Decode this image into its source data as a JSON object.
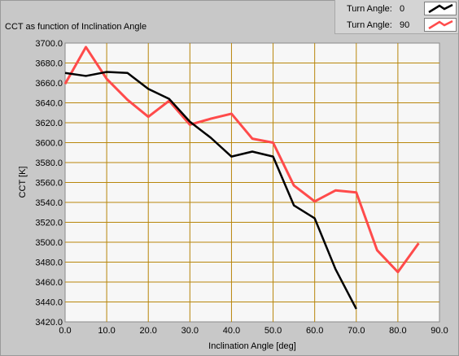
{
  "chart_data": {
    "type": "line",
    "title": "CCT as function of Inclination Angle",
    "xlabel": "Inclination Angle [deg]",
    "ylabel": "CCT [K]",
    "xlim": [
      0,
      90
    ],
    "ylim": [
      3420,
      3700
    ],
    "xticks": [
      "0.0",
      "10.0",
      "20.0",
      "30.0",
      "40.0",
      "50.0",
      "60.0",
      "70.0",
      "80.0",
      "90.0"
    ],
    "yticks": [
      "3420.0",
      "3440.0",
      "3460.0",
      "3480.0",
      "3500.0",
      "3520.0",
      "3540.0",
      "3560.0",
      "3580.0",
      "3600.0",
      "3620.0",
      "3640.0",
      "3660.0",
      "3680.0",
      "3700.0"
    ],
    "grid": true,
    "legend_position": "top-right",
    "legend_label": "Turn Angle:",
    "series": [
      {
        "name": "0",
        "color": "#000000",
        "x": [
          0,
          5,
          10,
          15,
          20,
          25,
          30,
          35,
          40,
          45,
          50,
          55,
          60,
          65,
          70
        ],
        "y": [
          3670,
          3667,
          3671,
          3670,
          3654,
          3644,
          3621,
          3605,
          3586,
          3591,
          3586,
          3537,
          3524,
          3473,
          3433
        ]
      },
      {
        "name": "90",
        "color": "#ff4b4b",
        "x": [
          0,
          5,
          10,
          15,
          20,
          25,
          30,
          35,
          40,
          45,
          50,
          55,
          60,
          65,
          70,
          75,
          80,
          85
        ],
        "y": [
          3659,
          3696,
          3664,
          3643,
          3626,
          3642,
          3618,
          3624,
          3629,
          3604,
          3600,
          3557,
          3541,
          3552,
          3550,
          3492,
          3470,
          3499
        ]
      }
    ]
  }
}
